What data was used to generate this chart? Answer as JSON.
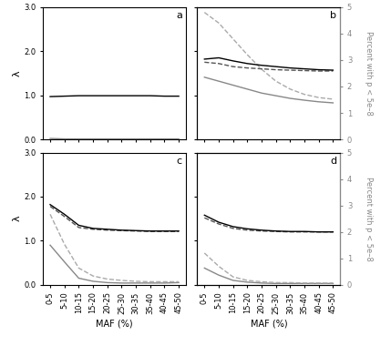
{
  "x_labels": [
    "0-5",
    "5-10",
    "10-15",
    "15-20",
    "20-25",
    "25-30",
    "30-35",
    "35-40",
    "40-45",
    "45-50"
  ],
  "x_vals": [
    0,
    1,
    2,
    3,
    4,
    5,
    6,
    7,
    8,
    9
  ],
  "panel_a": {
    "label": "a",
    "black_solid": [
      0.97,
      0.98,
      0.99,
      0.99,
      0.99,
      0.99,
      0.99,
      0.99,
      0.98,
      0.98
    ],
    "gray_solid": [
      0.02,
      0.01,
      0.01,
      0.01,
      0.01,
      0.01,
      0.01,
      0.01,
      0.01,
      0.01
    ],
    "black_dashed": null,
    "gray_dashed": null,
    "ylim_left": [
      0.0,
      3.0
    ],
    "ylim_right": null,
    "has_right_axis": false,
    "gray_on_right": false
  },
  "panel_b": {
    "label": "b",
    "black_solid": [
      1.82,
      1.85,
      1.78,
      1.72,
      1.68,
      1.65,
      1.62,
      1.6,
      1.58,
      1.57
    ],
    "gray_solid": [
      2.35,
      2.2,
      2.05,
      1.9,
      1.75,
      1.65,
      1.55,
      1.48,
      1.42,
      1.38
    ],
    "black_dashed": [
      1.75,
      1.72,
      1.65,
      1.62,
      1.6,
      1.58,
      1.57,
      1.56,
      1.55,
      1.55
    ],
    "gray_dashed": [
      4.8,
      4.4,
      3.8,
      3.2,
      2.65,
      2.2,
      1.9,
      1.7,
      1.58,
      1.52
    ],
    "ylim_left": [
      0.0,
      3.0
    ],
    "ylim_right": [
      0,
      5
    ],
    "has_right_axis": true,
    "gray_on_right": true
  },
  "panel_c": {
    "label": "c",
    "black_solid": [
      1.82,
      1.6,
      1.35,
      1.28,
      1.26,
      1.24,
      1.23,
      1.22,
      1.22,
      1.22
    ],
    "gray_solid": [
      0.9,
      0.52,
      0.15,
      0.08,
      0.05,
      0.04,
      0.04,
      0.04,
      0.04,
      0.05
    ],
    "black_dashed": [
      1.78,
      1.55,
      1.3,
      1.26,
      1.24,
      1.23,
      1.22,
      1.21,
      1.21,
      1.21
    ],
    "gray_dashed": [
      1.6,
      0.92,
      0.38,
      0.2,
      0.13,
      0.1,
      0.08,
      0.07,
      0.07,
      0.07
    ],
    "ylim_left": [
      0.0,
      3.0
    ],
    "ylim_right": null,
    "has_right_axis": false,
    "gray_on_right": false
  },
  "panel_d": {
    "label": "d",
    "black_solid": [
      1.58,
      1.42,
      1.32,
      1.27,
      1.24,
      1.22,
      1.21,
      1.21,
      1.2,
      1.2
    ],
    "gray_solid": [
      0.38,
      0.22,
      0.1,
      0.06,
      0.04,
      0.03,
      0.03,
      0.03,
      0.03,
      0.03
    ],
    "black_dashed": [
      1.52,
      1.38,
      1.28,
      1.24,
      1.22,
      1.21,
      1.2,
      1.2,
      1.2,
      1.2
    ],
    "gray_dashed": [
      0.72,
      0.42,
      0.18,
      0.1,
      0.07,
      0.05,
      0.05,
      0.04,
      0.04,
      0.04
    ],
    "ylim_left": [
      0.0,
      3.0
    ],
    "ylim_right": [
      0,
      5
    ],
    "has_right_axis": true,
    "gray_on_right": false
  },
  "black_color": "#000000",
  "dark_gray_color": "#555555",
  "gray_color": "#888888",
  "light_gray_color": "#aaaaaa",
  "xlabel": "MAF (%)",
  "ylabel_left": "λ",
  "ylabel_right": "Percent with p < 5e–8",
  "yticks_left": [
    0.0,
    1.0,
    2.0,
    3.0
  ],
  "ytick_labels_left": [
    "0.0",
    "1.0",
    "2.0",
    "3.0"
  ],
  "yticks_right": [
    0,
    1,
    2,
    3,
    4,
    5
  ],
  "ytick_labels_right": [
    "0",
    "1",
    "2",
    "3",
    "4",
    "5"
  ]
}
